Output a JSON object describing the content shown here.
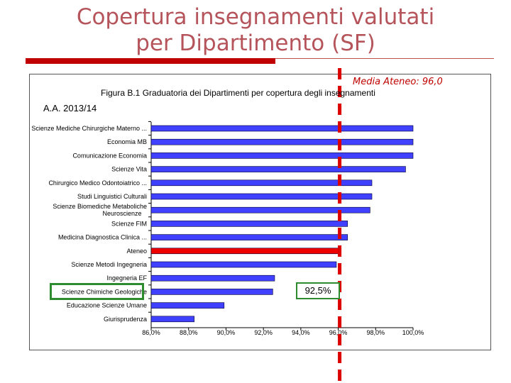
{
  "slide": {
    "title_line1": "Copertura insegnamenti valutati",
    "title_line2": "per Dipartimento (SF)"
  },
  "colors": {
    "title": "#b5545a",
    "accent_bar": "#c00000",
    "bar_fill": "#4040ff",
    "highlight_bar": "#ee0000",
    "reference_line": "#dd0000",
    "callout_border": "#2e8b2e"
  },
  "annotations": {
    "media_ateneo": "Media Ateneo: 96,0",
    "callout_value": "92,5%"
  },
  "chart_data": {
    "type": "bar",
    "orientation": "horizontal",
    "title": "Figura B.1 Graduatoria dei Dipartimenti per copertura degli insegnamenti",
    "subtitle": "A.A. 2013/14",
    "categories": [
      "Scienze Mediche Chirurgiche Materno ...",
      "Economia MB",
      "Comunicazione Economia",
      "Scienze Vita",
      "Chirurgico Medico Odontoiatrico ...",
      "Studi Linguistici Culturali",
      "Scienze Biomediche Metaboliche Neuroscienze",
      "Scienze FIM",
      "Medicina Diagnostica Clinica ...",
      "Ateneo",
      "Scienze Metodi Ingegneria",
      "Ingegneria EF",
      "Scienze Chimiche Geologiche",
      "Educazione Scienze Umane",
      "Giurisprudenza"
    ],
    "values": [
      100.0,
      100.0,
      100.0,
      99.6,
      97.8,
      97.8,
      97.7,
      96.5,
      96.5,
      96.0,
      95.9,
      92.6,
      92.5,
      89.9,
      88.3
    ],
    "highlight_category": "Ateneo",
    "xlim": [
      86,
      100
    ],
    "xticks": [
      "86,0%",
      "88,0%",
      "90,0%",
      "92,0%",
      "94,0%",
      "96,0%",
      "98,0%",
      "100,0%"
    ],
    "xtick_values": [
      86,
      88,
      90,
      92,
      94,
      96,
      98,
      100
    ],
    "reference_value": 96.0,
    "grid": false
  }
}
